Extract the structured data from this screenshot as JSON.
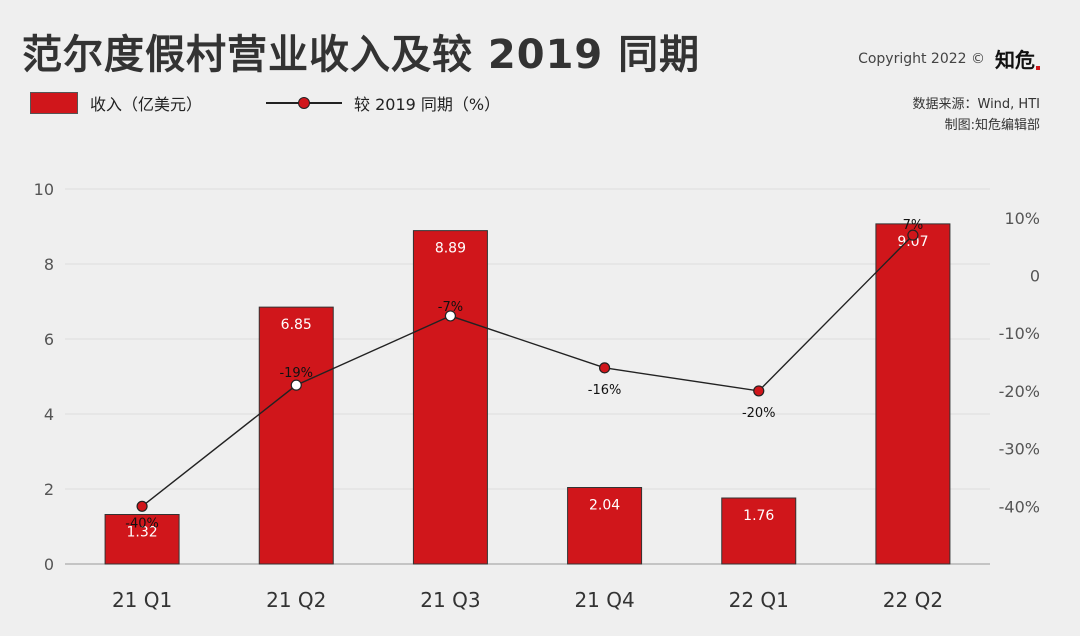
{
  "title": "范尔度假村营业收入及较 2019 同期",
  "copyright": {
    "text": "Copyright 2022 ©",
    "brand": "知危"
  },
  "legend": {
    "bar_label": "收入（亿美元）",
    "line_label": "较 2019 同期（%）"
  },
  "source": {
    "data_source": "数据来源：Wind, HTI",
    "made_by": "制图:知危编辑部"
  },
  "colors": {
    "bar": "#d0161b",
    "line": "#222222",
    "background": "#efefef"
  },
  "chart_data": {
    "type": "bar",
    "categories": [
      "21 Q1",
      "21 Q2",
      "21 Q3",
      "21 Q4",
      "22 Q1",
      "22 Q2"
    ],
    "series": [
      {
        "name": "收入（亿美元）",
        "type": "bar",
        "axis": "left",
        "values": [
          1.32,
          6.85,
          8.89,
          2.04,
          1.76,
          9.07
        ],
        "labels": [
          "1.32",
          "6.85",
          "8.89",
          "2.04",
          "1.76",
          "9.07"
        ]
      },
      {
        "name": "较 2019 同期（%）",
        "type": "line",
        "axis": "right",
        "values": [
          -40,
          -19,
          -7,
          -16,
          -20,
          7
        ],
        "labels": [
          "-40%",
          "-19%",
          "-7%",
          "-16%",
          "-20%",
          "7%"
        ],
        "hollow_markers": [
          false,
          true,
          true,
          false,
          false,
          false
        ]
      }
    ],
    "left_axis": {
      "ylim": [
        0,
        10
      ],
      "ticks": [
        0,
        2,
        4,
        6,
        8,
        10
      ],
      "tick_labels": [
        "0",
        "2",
        "4",
        "6",
        "8",
        "10"
      ]
    },
    "right_axis": {
      "ylim": [
        -50,
        15
      ],
      "ticks": [
        -40,
        -30,
        -20,
        -10,
        0,
        10
      ],
      "tick_labels": [
        "-40%",
        "-30%",
        "-20%",
        "-10%",
        "0",
        "10%"
      ]
    },
    "grid": true
  }
}
